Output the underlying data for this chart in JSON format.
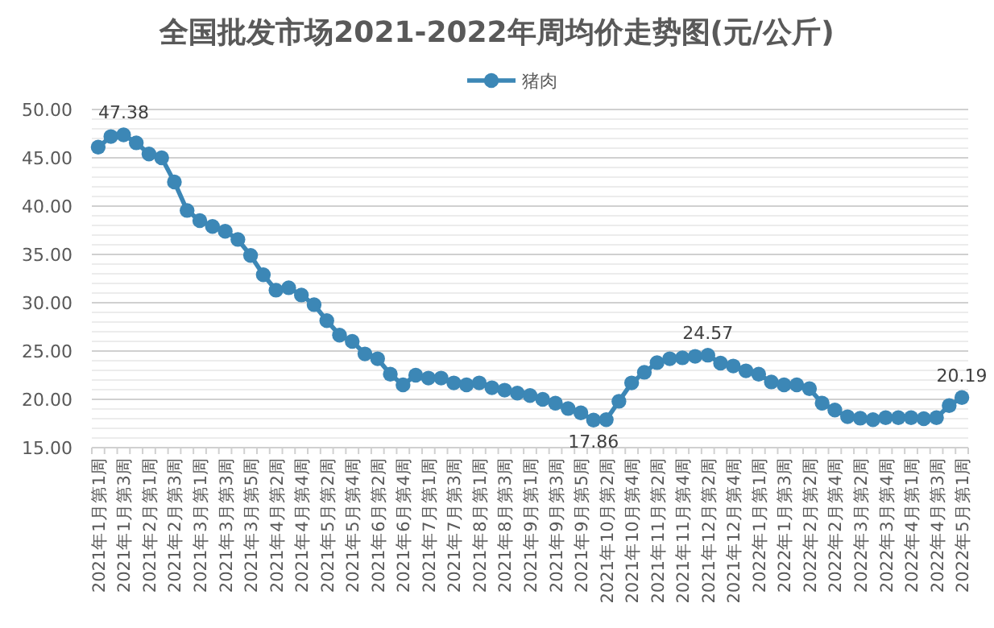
{
  "chart_data": {
    "type": "line",
    "title": "全国批发市场2021-2022年周均价走势图(元/公斤)",
    "categories": [
      "2021年1月第1周",
      null,
      "2021年1月第3周",
      null,
      "2021年2月第1周",
      null,
      "2021年2月第3周",
      null,
      "2021年3月第1周",
      null,
      "2021年3月第3周",
      null,
      "2021年3月第5周",
      null,
      "2021年4月第2周",
      null,
      "2021年4月第4周",
      null,
      "2021年5月第2周",
      null,
      "2021年5月第4周",
      null,
      "2021年6月第2周",
      null,
      "2021年6月第4周",
      null,
      "2021年7月第1周",
      null,
      "2021年7月第3周",
      null,
      "2021年8月第1周",
      null,
      "2021年8月第3周",
      null,
      "2021年9月第1周",
      null,
      "2021年9月第3周",
      null,
      "2021年9月第5周",
      null,
      "2021年10月第2周",
      null,
      "2021年10月第4周",
      null,
      "2021年11月第2周",
      null,
      "2021年11月第4周",
      null,
      "2021年12月第2周",
      null,
      "2021年12月第4周",
      null,
      "2022年1月第1周",
      null,
      "2022年1月第3周",
      null,
      "2022年2月第2周",
      null,
      "2022年2月第4周",
      null,
      "2022年3月第2周",
      null,
      "2022年3月第4周",
      null,
      "2022年4月第1周",
      null,
      "2022年4月第3周",
      null,
      "2022年5月第1周"
    ],
    "series": [
      {
        "name": "猪肉",
        "color": "#3c87b6",
        "values": [
          46.1,
          47.2,
          47.38,
          46.55,
          45.4,
          45.0,
          42.5,
          39.55,
          38.5,
          37.9,
          37.4,
          36.55,
          34.9,
          32.9,
          31.3,
          31.55,
          30.8,
          29.8,
          28.15,
          26.65,
          26.0,
          24.7,
          24.2,
          22.6,
          21.5,
          22.5,
          22.2,
          22.2,
          21.7,
          21.5,
          21.7,
          21.2,
          20.95,
          20.65,
          20.4,
          20.0,
          19.6,
          19.05,
          18.6,
          17.86,
          17.9,
          19.8,
          21.7,
          22.8,
          23.8,
          24.2,
          24.3,
          24.45,
          24.57,
          23.75,
          23.45,
          22.95,
          22.6,
          21.8,
          21.5,
          21.5,
          21.1,
          19.6,
          18.9,
          18.2,
          18.05,
          17.9,
          18.1,
          18.1,
          18.1,
          18.0,
          18.1,
          19.35,
          20.19
        ],
        "value_labels": [
          null,
          null,
          "47.38",
          null,
          null,
          null,
          null,
          null,
          null,
          null,
          null,
          null,
          null,
          null,
          null,
          null,
          null,
          null,
          null,
          null,
          null,
          null,
          null,
          null,
          null,
          null,
          null,
          null,
          null,
          null,
          null,
          null,
          null,
          null,
          null,
          null,
          null,
          null,
          null,
          "17.86",
          null,
          null,
          null,
          null,
          null,
          null,
          null,
          null,
          "24.57",
          null,
          null,
          null,
          null,
          null,
          null,
          null,
          null,
          null,
          null,
          null,
          null,
          null,
          null,
          null,
          null,
          null,
          null,
          null,
          "20.19"
        ]
      }
    ],
    "ylim": [
      15,
      50
    ],
    "yticks": [
      "15.00",
      {
        "value": 16,
        "label": null
      },
      {
        "value": 17,
        "label": null
      },
      {
        "value": 18,
        "label": null
      },
      {
        "value": 19,
        "label": null
      },
      "20.00",
      {
        "value": 21,
        "label": null
      },
      {
        "value": 22,
        "label": null
      },
      {
        "value": 23,
        "label": null
      },
      {
        "value": 24,
        "label": null
      },
      "25.00",
      {
        "value": 26,
        "label": null
      },
      {
        "value": 27,
        "label": null
      },
      {
        "value": 28,
        "label": null
      },
      {
        "value": 29,
        "label": null
      },
      "30.00",
      {
        "value": 31,
        "label": null
      },
      {
        "value": 32,
        "label": null
      },
      {
        "value": 33,
        "label": null
      },
      {
        "value": 34,
        "label": null
      },
      "35.00",
      {
        "value": 36,
        "label": null
      },
      {
        "value": 37,
        "label": null
      },
      {
        "value": 38,
        "label": null
      },
      {
        "value": 39,
        "label": null
      },
      "40.00",
      {
        "value": 41,
        "label": null
      },
      {
        "value": 42,
        "label": null
      },
      {
        "value": 43,
        "label": null
      },
      {
        "value": 44,
        "label": null
      },
      "45.00",
      {
        "value": 46,
        "label": null
      },
      {
        "value": 47,
        "label": null
      },
      {
        "value": 48,
        "label": null
      },
      {
        "value": 49,
        "label": null
      },
      "50.00"
    ],
    "grid": true,
    "legend": "top",
    "marker": "circle",
    "line_style": "solid"
  }
}
